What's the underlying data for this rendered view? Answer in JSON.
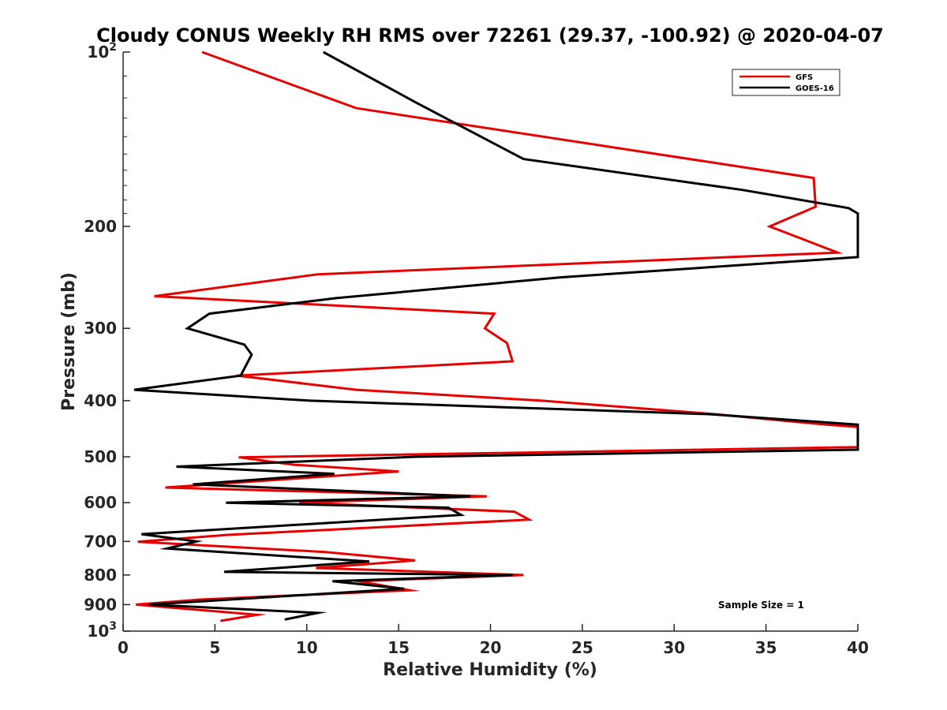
{
  "chart_data": {
    "type": "line",
    "title": "Cloudy CONUS Weekly RH RMS over 72261 (29.37, -100.92) @ 2020-04-07",
    "xlabel": "Relative Humidity (%)",
    "ylabel": "Pressure (mb)",
    "xlim": [
      0,
      40
    ],
    "ylim": [
      100,
      1000
    ],
    "y_scale": "log",
    "y_reversed": true,
    "x_ticks": [
      "0",
      "5",
      "10",
      "15",
      "20",
      "25",
      "30",
      "35",
      "40"
    ],
    "y_ticks": [
      {
        "value": 100,
        "label": "10",
        "sup": "2"
      },
      {
        "value": 200,
        "label": "200",
        "sup": ""
      },
      {
        "value": 300,
        "label": "300",
        "sup": ""
      },
      {
        "value": 400,
        "label": "400",
        "sup": ""
      },
      {
        "value": 500,
        "label": "500",
        "sup": ""
      },
      {
        "value": 600,
        "label": "600",
        "sup": ""
      },
      {
        "value": 700,
        "label": "700",
        "sup": ""
      },
      {
        "value": 800,
        "label": "800",
        "sup": ""
      },
      {
        "value": 900,
        "label": "900",
        "sup": ""
      },
      {
        "value": 1000,
        "label": "10",
        "sup": "3"
      }
    ],
    "grid": false,
    "legend_position": "top-right",
    "annotation": "Sample Size = 1",
    "colors": {
      "GFS": "#e60000",
      "GOES-16": "#000000"
    },
    "series": [
      {
        "name": "GFS",
        "color": "#e60000",
        "points": [
          [
            4.3,
            100
          ],
          [
            12.7,
            125
          ],
          [
            37.6,
            165
          ],
          [
            37.7,
            185
          ],
          [
            35.2,
            200
          ],
          [
            38.9,
            222
          ],
          [
            10.6,
            242
          ],
          [
            1.7,
            264
          ],
          [
            20.2,
            283
          ],
          [
            19.7,
            300
          ],
          [
            20.9,
            318
          ],
          [
            21.2,
            342
          ],
          [
            6.2,
            362
          ],
          [
            12.7,
            383
          ],
          [
            22.8,
            400
          ],
          [
            32.2,
            422
          ],
          [
            38.3,
            440
          ],
          [
            40.0,
            444
          ],
          [
            40.0,
            481
          ],
          [
            6.3,
            501
          ],
          [
            9.3,
            516
          ],
          [
            15.0,
            530
          ],
          [
            2.3,
            565
          ],
          [
            19.8,
            585
          ],
          [
            9.6,
            600
          ],
          [
            21.3,
            622
          ],
          [
            22.1,
            642
          ],
          [
            5.7,
            682
          ],
          [
            0.8,
            701
          ],
          [
            11.0,
            730
          ],
          [
            15.9,
            755
          ],
          [
            10.5,
            778
          ],
          [
            21.8,
            800
          ],
          [
            12.8,
            820
          ],
          [
            15.6,
            850
          ],
          [
            4.2,
            882
          ],
          [
            0.7,
            900
          ],
          [
            7.3,
            937
          ],
          [
            5.3,
            960
          ]
        ]
      },
      {
        "name": "GOES-16",
        "color": "#000000",
        "points": [
          [
            10.9,
            100
          ],
          [
            15.9,
            122
          ],
          [
            21.8,
            153
          ],
          [
            33.7,
            173
          ],
          [
            39.5,
            186
          ],
          [
            40.0,
            190
          ],
          [
            40.0,
            226
          ],
          [
            23.8,
            245
          ],
          [
            11.6,
            266
          ],
          [
            4.7,
            283
          ],
          [
            3.5,
            300
          ],
          [
            6.6,
            320
          ],
          [
            7.0,
            333
          ],
          [
            6.4,
            362
          ],
          [
            0.6,
            383
          ],
          [
            10.2,
            400
          ],
          [
            31.9,
            422
          ],
          [
            40.0,
            440
          ],
          [
            40.0,
            486
          ],
          [
            15.9,
            500
          ],
          [
            2.9,
            520
          ],
          [
            11.5,
            535
          ],
          [
            3.8,
            558
          ],
          [
            18.9,
            585
          ],
          [
            5.6,
            600
          ],
          [
            17.7,
            612
          ],
          [
            18.4,
            630
          ],
          [
            1.0,
            680
          ],
          [
            4.0,
            700
          ],
          [
            2.4,
            720
          ],
          [
            13.4,
            758
          ],
          [
            5.5,
            790
          ],
          [
            21.2,
            800
          ],
          [
            11.4,
            820
          ],
          [
            15.3,
            845
          ],
          [
            1.4,
            900
          ],
          [
            10.6,
            930
          ],
          [
            8.8,
            955
          ]
        ]
      }
    ]
  }
}
